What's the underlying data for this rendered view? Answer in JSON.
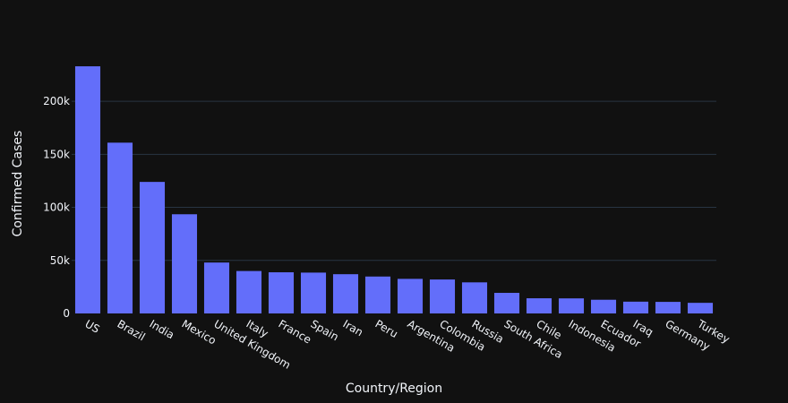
{
  "chart_data": {
    "type": "bar",
    "title": "",
    "xlabel": "Country/Region",
    "ylabel": "Confirmed Cases",
    "categories": [
      "US",
      "Brazil",
      "India",
      "Mexico",
      "United Kingdom",
      "Italy",
      "France",
      "Spain",
      "Iran",
      "Peru",
      "Argentina",
      "Colombia",
      "Russia",
      "South Africa",
      "Chile",
      "Indonesia",
      "Ecuador",
      "Iraq",
      "Germany",
      "Turkey"
    ],
    "values": [
      233000,
      161000,
      124000,
      93500,
      48000,
      40000,
      38800,
      38500,
      37000,
      34800,
      32600,
      32000,
      29300,
      19400,
      14300,
      14200,
      12900,
      11100,
      10900,
      10000
    ],
    "ylim": [
      0,
      244000
    ],
    "yticks": [
      0,
      50000,
      100000,
      150000,
      200000
    ],
    "ytick_labels": [
      "0",
      "50k",
      "100k",
      "150k",
      "200k"
    ],
    "grid": true,
    "bar_color": "#636efa",
    "background_color": "#111111",
    "grid_color": "#283442",
    "text_color": "#f2f5fa"
  }
}
